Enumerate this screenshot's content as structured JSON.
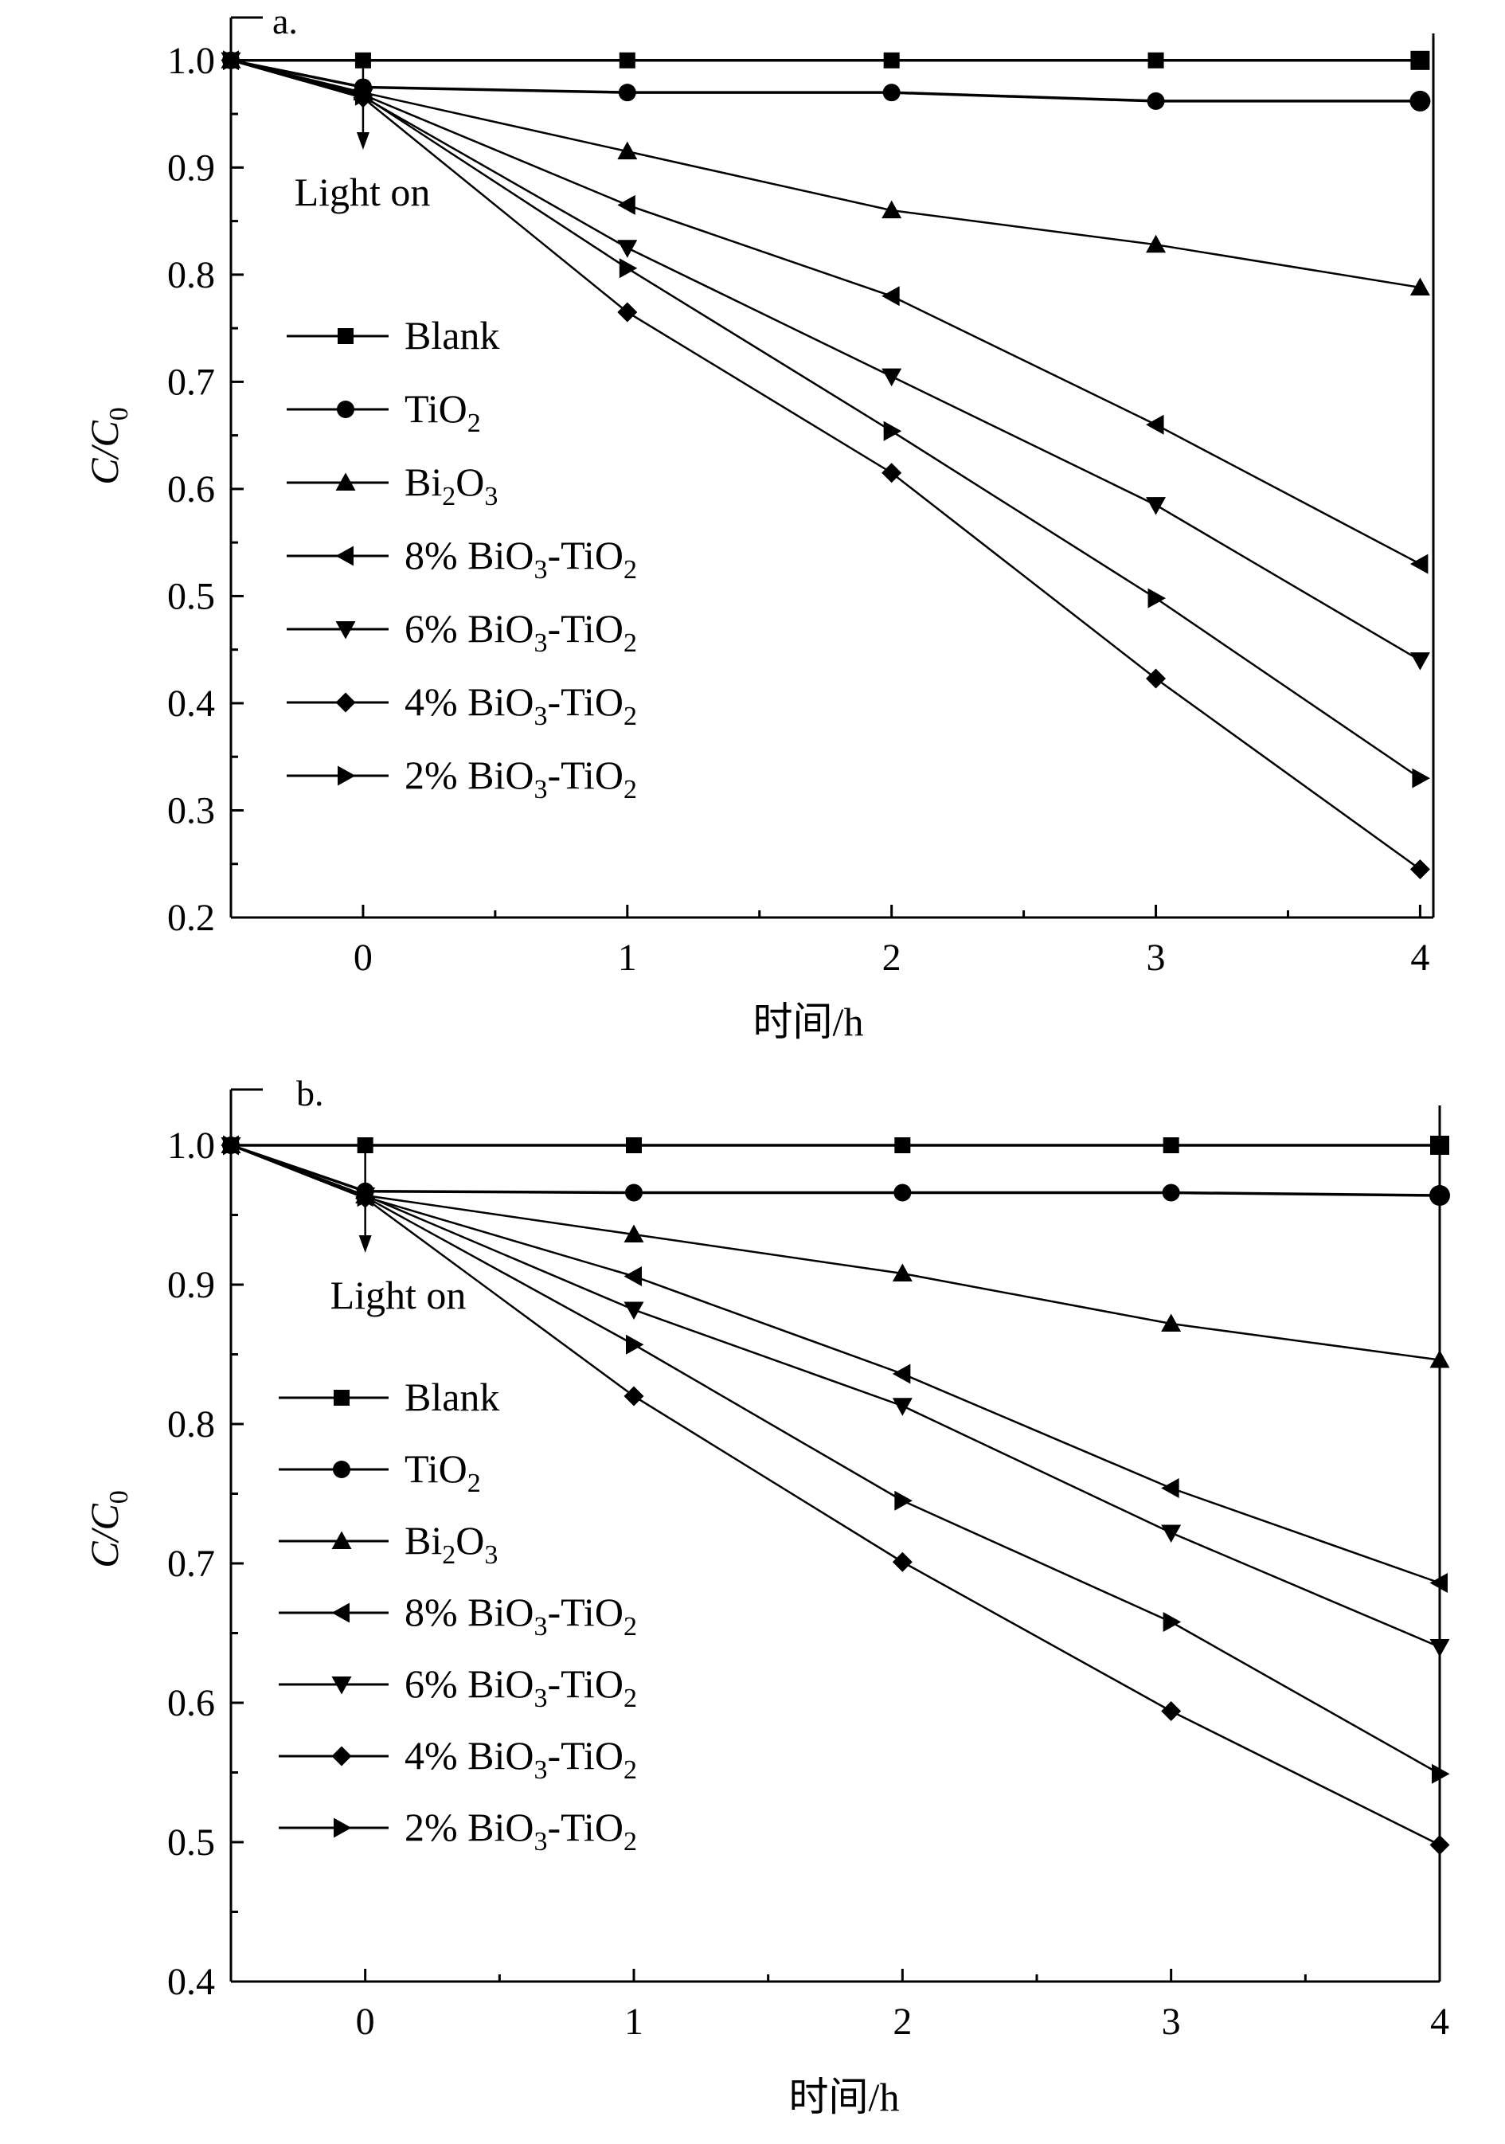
{
  "chart_data": [
    {
      "type": "line",
      "panel_label": "a.",
      "annotation": "Light on",
      "xlabel": "时间/h",
      "ylabel": {
        "base": "C/C",
        "sub": "0"
      },
      "xlim": [
        -0.5,
        4.05
      ],
      "ylim": [
        0.2,
        1.04
      ],
      "xticks": [
        0,
        1,
        2,
        3,
        4
      ],
      "xtick_labels": [
        "0",
        "1",
        "2",
        "3",
        "4"
      ],
      "yticks": [
        0.2,
        0.3,
        0.4,
        0.5,
        0.6,
        0.7,
        0.8,
        0.9,
        1.0
      ],
      "ytick_labels": [
        "0.2",
        "0.3",
        "0.4",
        "0.5",
        "0.6",
        "0.7",
        "0.8",
        "0.9",
        "1.0"
      ],
      "legend_position": "left-center",
      "x": [
        -0.5,
        0,
        1,
        2,
        3,
        4
      ],
      "series": [
        {
          "name": "Blank",
          "name_parts": [
            [
              "Blank",
              ""
            ]
          ],
          "marker": "square",
          "values": [
            1.0,
            1.0,
            1.0,
            1.0,
            1.0,
            1.0
          ]
        },
        {
          "name": "TiO2",
          "name_parts": [
            [
              "TiO",
              ""
            ],
            [
              "2",
              "sub"
            ]
          ],
          "marker": "circle",
          "values": [
            1.0,
            0.975,
            0.97,
            0.97,
            0.962,
            0.962
          ]
        },
        {
          "name": "Bi2O3",
          "name_parts": [
            [
              "Bi",
              ""
            ],
            [
              "2",
              "sub"
            ],
            [
              "O",
              ""
            ],
            [
              "3",
              "sub"
            ]
          ],
          "marker": "triangle-up",
          "values": [
            1.0,
            0.97,
            0.915,
            0.86,
            0.828,
            0.788
          ]
        },
        {
          "name": "8% BiO3-TiO2",
          "name_parts": [
            [
              "8% BiO",
              ""
            ],
            [
              "3",
              "sub"
            ],
            [
              "-TiO",
              ""
            ],
            [
              "2",
              "sub"
            ]
          ],
          "marker": "triangle-left",
          "values": [
            1.0,
            0.968,
            0.865,
            0.78,
            0.66,
            0.53
          ]
        },
        {
          "name": "6% BiO3-TiO2",
          "name_parts": [
            [
              "6% BiO",
              ""
            ],
            [
              "3",
              "sub"
            ],
            [
              "-TiO",
              ""
            ],
            [
              "2",
              "sub"
            ]
          ],
          "marker": "triangle-down",
          "values": [
            1.0,
            0.966,
            0.825,
            0.705,
            0.585,
            0.44
          ]
        },
        {
          "name": "4% BiO3-TiO2",
          "name_parts": [
            [
              "4% BiO",
              ""
            ],
            [
              "3",
              "sub"
            ],
            [
              "-TiO",
              ""
            ],
            [
              "2",
              "sub"
            ]
          ],
          "marker": "diamond",
          "values": [
            1.0,
            0.965,
            0.765,
            0.615,
            0.423,
            0.245
          ]
        },
        {
          "name": "2% BiO3-TiO2",
          "name_parts": [
            [
              "2% BiO",
              ""
            ],
            [
              "3",
              "sub"
            ],
            [
              "-TiO",
              ""
            ],
            [
              "2",
              "sub"
            ]
          ],
          "marker": "triangle-right",
          "values": [
            1.0,
            0.967,
            0.806,
            0.654,
            0.498,
            0.33
          ]
        }
      ]
    },
    {
      "type": "line",
      "panel_label": "b.",
      "annotation": "Light on",
      "xlabel": "时间/h",
      "ylabel": {
        "base": "C/C",
        "sub": "0"
      },
      "xlim": [
        -0.5,
        4.0
      ],
      "ylim": [
        0.4,
        1.04
      ],
      "xticks": [
        0,
        1,
        2,
        3,
        4
      ],
      "xtick_labels": [
        "0",
        "1",
        "2",
        "3",
        "4"
      ],
      "yticks": [
        0.4,
        0.5,
        0.6,
        0.7,
        0.8,
        0.9,
        1.0
      ],
      "ytick_labels": [
        "0.4",
        "0.5",
        "0.6",
        "0.7",
        "0.8",
        "0.9",
        "1.0"
      ],
      "legend_position": "left-center",
      "x": [
        -0.5,
        0,
        1,
        2,
        3,
        4
      ],
      "series": [
        {
          "name": "Blank",
          "name_parts": [
            [
              "Blank",
              ""
            ]
          ],
          "marker": "square",
          "values": [
            1.0,
            1.0,
            1.0,
            1.0,
            1.0,
            1.0
          ]
        },
        {
          "name": "TiO2",
          "name_parts": [
            [
              "TiO",
              ""
            ],
            [
              "2",
              "sub"
            ]
          ],
          "marker": "circle",
          "values": [
            1.0,
            0.967,
            0.966,
            0.966,
            0.966,
            0.964
          ]
        },
        {
          "name": "Bi2O3",
          "name_parts": [
            [
              "Bi",
              ""
            ],
            [
              "2",
              "sub"
            ],
            [
              "O",
              ""
            ],
            [
              "3",
              "sub"
            ]
          ],
          "marker": "triangle-up",
          "values": [
            1.0,
            0.964,
            0.936,
            0.908,
            0.872,
            0.846
          ]
        },
        {
          "name": "8% BiO3-TiO2",
          "name_parts": [
            [
              "8% BiO",
              ""
            ],
            [
              "3",
              "sub"
            ],
            [
              "-TiO",
              ""
            ],
            [
              "2",
              "sub"
            ]
          ],
          "marker": "triangle-left",
          "values": [
            1.0,
            0.963,
            0.906,
            0.836,
            0.754,
            0.686
          ]
        },
        {
          "name": "6% BiO3-TiO2",
          "name_parts": [
            [
              "6% BiO",
              ""
            ],
            [
              "3",
              "sub"
            ],
            [
              "-TiO",
              ""
            ],
            [
              "2",
              "sub"
            ]
          ],
          "marker": "triangle-down",
          "values": [
            1.0,
            0.964,
            0.882,
            0.813,
            0.722,
            0.64
          ]
        },
        {
          "name": "4% BiO3-TiO2",
          "name_parts": [
            [
              "4% BiO",
              ""
            ],
            [
              "3",
              "sub"
            ],
            [
              "-TiO",
              ""
            ],
            [
              "2",
              "sub"
            ]
          ],
          "marker": "diamond",
          "values": [
            1.0,
            0.962,
            0.82,
            0.701,
            0.594,
            0.498
          ]
        },
        {
          "name": "2% BiO3-TiO2",
          "name_parts": [
            [
              "2% BiO",
              ""
            ],
            [
              "3",
              "sub"
            ],
            [
              "-TiO",
              ""
            ],
            [
              "2",
              "sub"
            ]
          ],
          "marker": "triangle-right",
          "values": [
            1.0,
            0.963,
            0.857,
            0.745,
            0.658,
            0.549
          ]
        }
      ]
    }
  ]
}
